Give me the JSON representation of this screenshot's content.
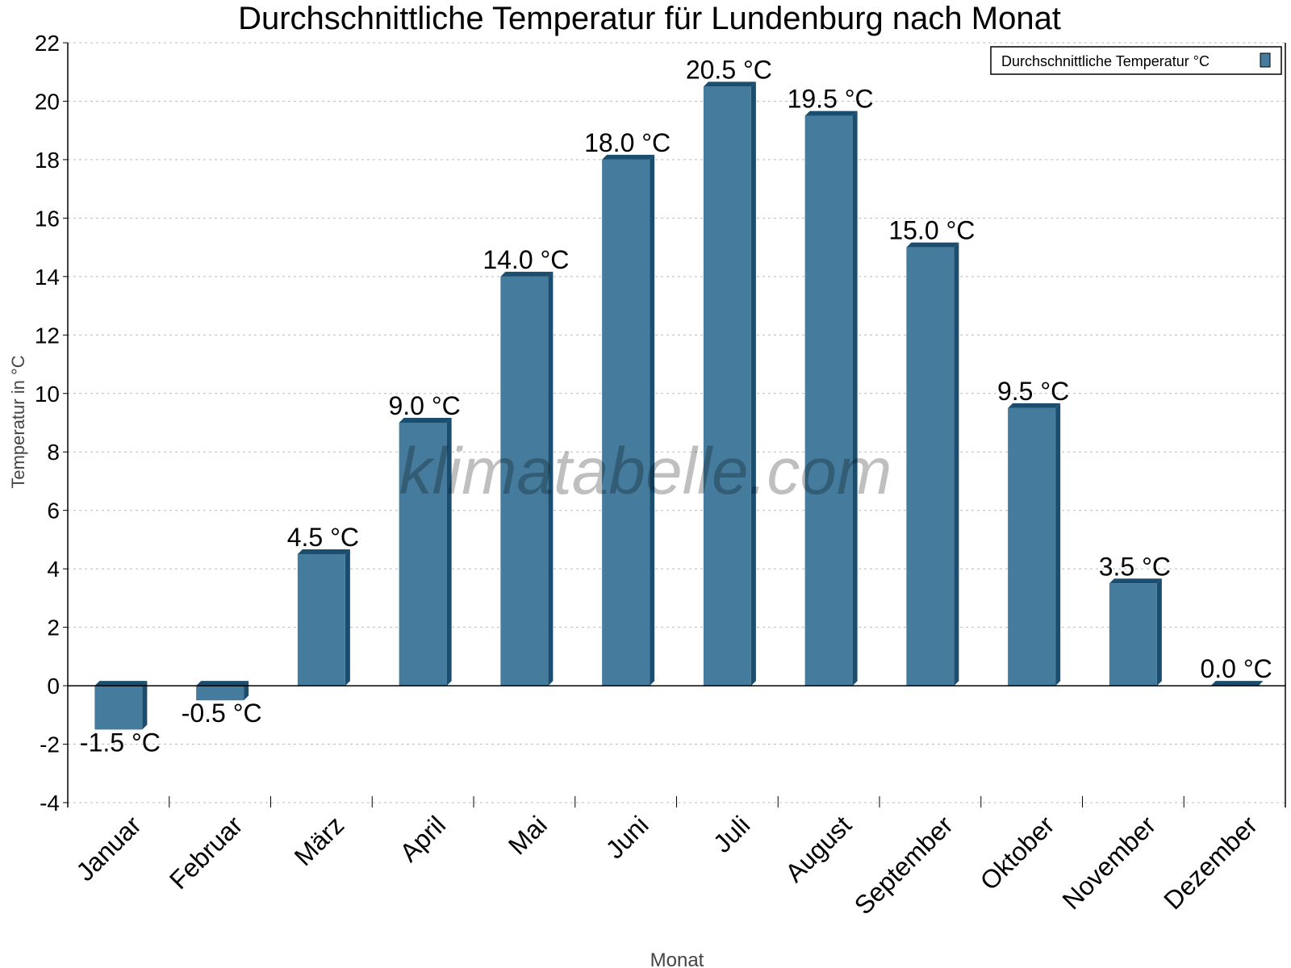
{
  "chart_data": {
    "type": "bar",
    "title": "Durchschnittliche Temperatur für Lundenburg nach Monat",
    "xlabel": "Monat",
    "ylabel": "Temperatur in °C",
    "categories": [
      "Januar",
      "Februar",
      "März",
      "April",
      "Mai",
      "Juni",
      "Juli",
      "August",
      "September",
      "Oktober",
      "November",
      "Dezember"
    ],
    "series": [
      {
        "name": "Durchschnittliche Temperatur °C",
        "values": [
          -1.5,
          -0.5,
          4.5,
          9.0,
          14.0,
          18.0,
          20.5,
          19.5,
          15.0,
          9.5,
          3.5,
          0.0
        ],
        "color": "#457b9d",
        "side_color": "#1b4d6e"
      }
    ],
    "data_labels": [
      "-1.5 °C",
      "-0.5 °C",
      "4.5 °C",
      "9.0 °C",
      "14.0 °C",
      "18.0 °C",
      "20.5 °C",
      "19.5 °C",
      "15.0 °C",
      "9.5 °C",
      "3.5 °C",
      "0.0 °C"
    ],
    "ylim": [
      -4,
      22
    ],
    "yticks": [
      -4,
      -2,
      0,
      2,
      4,
      6,
      8,
      10,
      12,
      14,
      16,
      18,
      20,
      22
    ],
    "grid": true,
    "legend_position": "top-right",
    "watermark": "klimatabelle.com"
  }
}
